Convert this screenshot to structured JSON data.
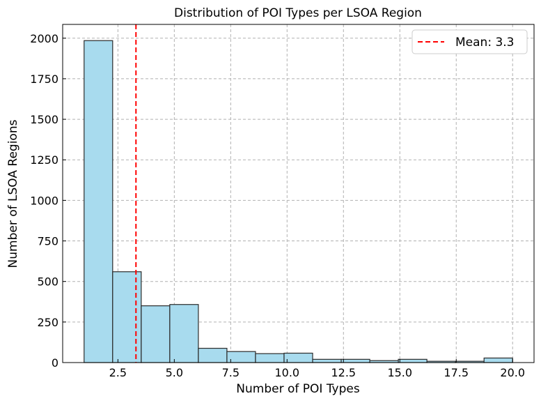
{
  "chart_data": {
    "type": "bar",
    "title": "Distribution of POI Types per LSOA Region",
    "xlabel": "Number of POI Types",
    "ylabel": "Number of LSOA Regions",
    "bin_width": 1.2666667,
    "bins": [
      {
        "start": 1.0,
        "end": 2.2667,
        "value": 1985
      },
      {
        "start": 2.2667,
        "end": 3.5333,
        "value": 560
      },
      {
        "start": 3.5333,
        "end": 4.8,
        "value": 350
      },
      {
        "start": 4.8,
        "end": 6.0667,
        "value": 358
      },
      {
        "start": 6.0667,
        "end": 7.3333,
        "value": 88
      },
      {
        "start": 7.3333,
        "end": 8.6,
        "value": 68
      },
      {
        "start": 8.6,
        "end": 9.8667,
        "value": 55
      },
      {
        "start": 9.8667,
        "end": 11.1333,
        "value": 58
      },
      {
        "start": 11.1333,
        "end": 12.4,
        "value": 20
      },
      {
        "start": 12.4,
        "end": 13.6667,
        "value": 20
      },
      {
        "start": 13.6667,
        "end": 14.9333,
        "value": 12
      },
      {
        "start": 14.9333,
        "end": 16.2,
        "value": 20
      },
      {
        "start": 16.2,
        "end": 17.4667,
        "value": 8
      },
      {
        "start": 17.4667,
        "end": 18.7333,
        "value": 8
      },
      {
        "start": 18.7333,
        "end": 20.0,
        "value": 28
      }
    ],
    "xlim": [
      0.05,
      20.95
    ],
    "ylim": [
      0,
      2085
    ],
    "x_ticks": [
      2.5,
      5.0,
      7.5,
      10.0,
      12.5,
      15.0,
      17.5,
      20.0
    ],
    "x_tick_labels": [
      "2.5",
      "5.0",
      "7.5",
      "10.0",
      "12.5",
      "15.0",
      "17.5",
      "20.0"
    ],
    "y_ticks": [
      0,
      250,
      500,
      750,
      1000,
      1250,
      1500,
      1750,
      2000
    ],
    "y_tick_labels": [
      "0",
      "250",
      "500",
      "750",
      "1000",
      "1250",
      "1500",
      "1750",
      "2000"
    ],
    "mean_line": {
      "value": 3.3,
      "label": "Mean: 3.3",
      "color": "#ff0000"
    },
    "bar_color": "#a8dbee",
    "bar_edge_color": "#2b2b2b",
    "grid": true,
    "legend_position": "top-right"
  }
}
